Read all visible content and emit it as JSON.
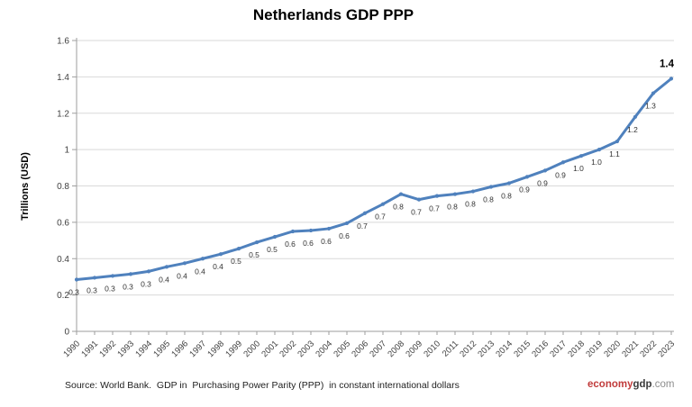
{
  "title": "Netherlands GDP PPP",
  "y_axis_title": "Trillions (USD)",
  "footer": {
    "source_text": "Source: World Bank.  GDP in  Purchasing Power Parity (PPP)  in constant international dollars",
    "brand": {
      "part1": "economy",
      "part2": "gdp",
      "part3": ".com"
    }
  },
  "colors": {
    "line": "#4F81BD",
    "marker": "#4F81BD",
    "grid": "#D9D9D9",
    "axis": "#9E9E9E",
    "tick_text": "#3F3F3F",
    "data_label": "#333333",
    "final_label": "#000000",
    "title": "#000000",
    "footer_text": "#1F1F1F",
    "brand_red": "#C13B3B",
    "brand_dark": "#3A3A3A",
    "brand_gray": "#8E8E8E"
  },
  "chart_data": {
    "type": "line",
    "title": "Netherlands GDP PPP",
    "xlabel": "",
    "ylabel": "Trillions (USD)",
    "x": [
      "1990",
      "1991",
      "1992",
      "1993",
      "1994",
      "1995",
      "1996",
      "1997",
      "1998",
      "1999",
      "2000",
      "2001",
      "2002",
      "2003",
      "2004",
      "2005",
      "2006",
      "2007",
      "2008",
      "2009",
      "2010",
      "2011",
      "2012",
      "2013",
      "2014",
      "2015",
      "2016",
      "2017",
      "2018",
      "2019",
      "2020",
      "2021",
      "2022",
      "2023"
    ],
    "values": [
      0.3,
      0.3,
      0.3,
      0.3,
      0.3,
      0.4,
      0.4,
      0.4,
      0.4,
      0.5,
      0.5,
      0.5,
      0.6,
      0.6,
      0.6,
      0.6,
      0.7,
      0.7,
      0.8,
      0.7,
      0.7,
      0.8,
      0.8,
      0.8,
      0.8,
      0.9,
      0.9,
      0.9,
      1.0,
      1.0,
      1.1,
      1.2,
      1.3,
      1.4
    ],
    "point_labels": [
      "0.3",
      "0.3",
      "0.3",
      "0.3",
      "0.3",
      "0.4",
      "0.4",
      "0.4",
      "0.4",
      "0.5",
      "0.5",
      "0.5",
      "0.6",
      "0.6",
      "0.6",
      "0.6",
      "0.7",
      "0.7",
      "0.8",
      "0.7",
      "0.7",
      "0.8",
      "0.8",
      "0.8",
      "0.8",
      "0.9",
      "0.9",
      "0.9",
      "1.0",
      "1.0",
      "1.1",
      "1.2",
      "1.3",
      "1.4"
    ],
    "values_precise_est": [
      0.285,
      0.295,
      0.305,
      0.315,
      0.33,
      0.355,
      0.375,
      0.4,
      0.425,
      0.455,
      0.49,
      0.52,
      0.55,
      0.555,
      0.565,
      0.595,
      0.65,
      0.7,
      0.755,
      0.725,
      0.745,
      0.755,
      0.77,
      0.795,
      0.815,
      0.85,
      0.885,
      0.93,
      0.965,
      1.0,
      1.045,
      1.18,
      1.31,
      1.39
    ],
    "ylim": [
      0,
      1.6
    ],
    "yticks": [
      "0",
      "0.2",
      "0.4",
      "0.6",
      "0.8",
      "1",
      "1.2",
      "1.4",
      "1.6"
    ],
    "grid": "horizontal",
    "legend": "none",
    "last_label_bold": true
  }
}
